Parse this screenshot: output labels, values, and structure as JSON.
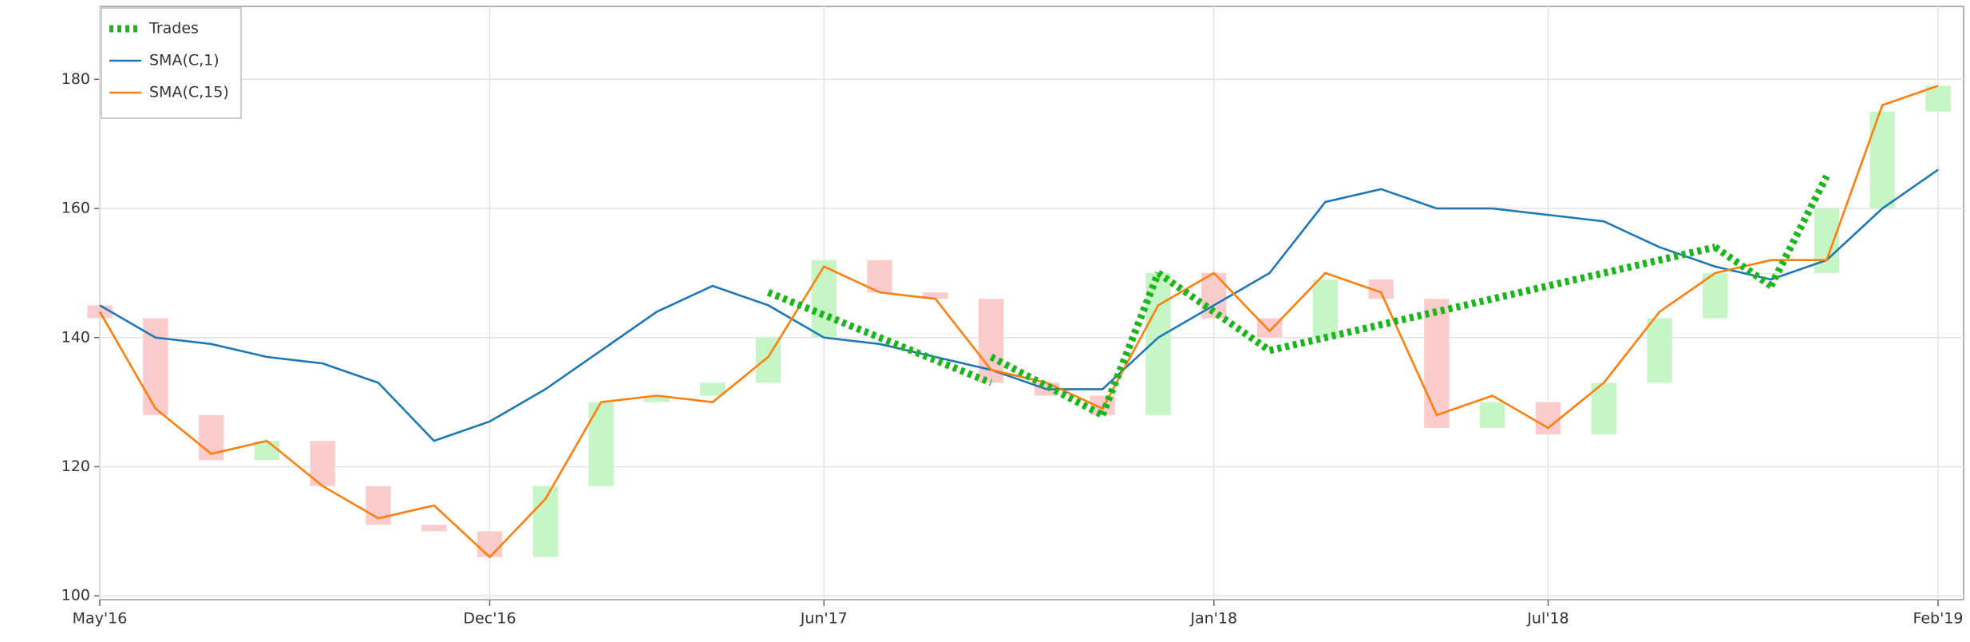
{
  "chart_data": {
    "type": "ohlc-backtest",
    "x": [
      "2016-05",
      "2016-06",
      "2016-07",
      "2016-08",
      "2016-09",
      "2016-10",
      "2016-11",
      "2016-12",
      "2017-01",
      "2017-02",
      "2017-03",
      "2017-04",
      "2017-05",
      "2017-06",
      "2017-07",
      "2017-08",
      "2017-09",
      "2017-10",
      "2017-11",
      "2017-12",
      "2018-01",
      "2018-02",
      "2018-03",
      "2018-04",
      "2018-05",
      "2018-06",
      "2018-07",
      "2018-08",
      "2018-09",
      "2018-10",
      "2018-11",
      "2018-12",
      "2019-01",
      "2019-02"
    ],
    "xlim": [
      "2016-05",
      "2019-02"
    ],
    "xticks": [
      {
        "value": "2016-05",
        "label": "May'16"
      },
      {
        "value": "2016-12",
        "label": "Dec'16"
      },
      {
        "value": "2017-06",
        "label": "Jun'17"
      },
      {
        "value": "2018-01",
        "label": "Jan'18"
      },
      {
        "value": "2018-07",
        "label": "Jul'18"
      },
      {
        "value": "2019-02",
        "label": "Feb'19"
      }
    ],
    "ylim": [
      99.4,
      191.3
    ],
    "yticks": [
      100,
      120,
      140,
      160,
      180
    ],
    "grid": true,
    "legend": "top-left",
    "candles": {
      "up_color": "#c6f5c6",
      "down_color": "#fbcccc",
      "open": [
        145,
        143,
        128,
        121,
        124,
        117,
        111,
        110,
        106,
        117,
        130,
        131,
        133,
        140,
        152,
        147,
        146,
        133,
        131,
        128,
        150,
        143,
        140,
        149,
        146,
        126,
        130,
        125,
        133,
        143,
        150,
        150,
        160,
        175
      ],
      "close": [
        143,
        128,
        121,
        124,
        117,
        111,
        110,
        106,
        117,
        130,
        131,
        133,
        140,
        152,
        147,
        146,
        133,
        131,
        128,
        150,
        143,
        140,
        149,
        146,
        126,
        130,
        125,
        133,
        143,
        150,
        150,
        160,
        175,
        179
      ]
    },
    "series": [
      {
        "name": "SMA(C,1)",
        "color": "#1f77b4",
        "values": [
          145,
          140,
          139,
          137,
          136,
          133,
          124,
          127,
          132,
          138,
          144,
          148,
          145,
          140,
          139,
          137,
          135,
          132,
          132,
          140,
          145,
          150,
          161,
          163,
          160,
          160,
          159,
          158,
          154,
          151,
          149,
          152,
          160,
          166
        ]
      },
      {
        "name": "SMA(C,15)",
        "color": "#ff7f0e",
        "values": [
          144,
          129,
          122,
          124,
          117,
          112,
          114,
          106,
          115,
          130,
          131,
          130,
          137,
          151,
          147,
          146,
          135,
          133,
          129,
          145,
          150,
          141,
          150,
          147,
          128,
          131,
          126,
          133,
          144,
          150,
          152,
          152,
          176,
          179
        ]
      }
    ],
    "trades": {
      "name": "Trades",
      "color": "#1db51d",
      "entry_x": [
        "2017-05",
        "2017-09",
        "2017-11",
        "2017-12",
        "2018-02",
        "2018-10",
        "2018-11"
      ],
      "entry_price": [
        147,
        137,
        128,
        150,
        138,
        154,
        148
      ],
      "exit_x": [
        "2017-09",
        "2017-11",
        "2017-12",
        "2018-02",
        "2018-10",
        "2018-11",
        "2018-12"
      ],
      "exit_price": [
        133,
        128,
        150,
        138,
        154,
        148,
        165
      ]
    }
  }
}
